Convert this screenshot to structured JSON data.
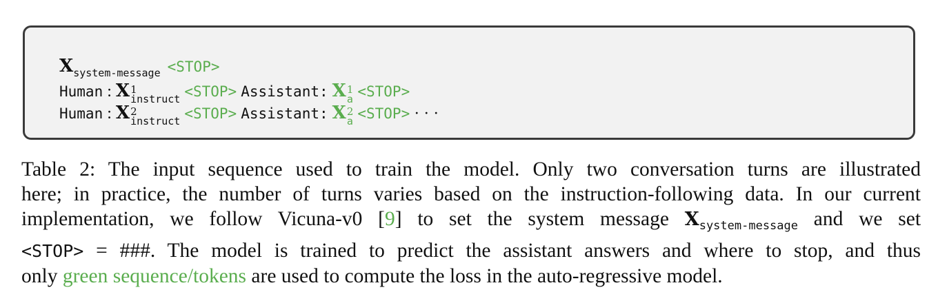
{
  "sequence_box": {
    "line1": {
      "var": "X",
      "var_sub": "system-message",
      "stop": "<STOP>"
    },
    "line2": {
      "human": "Human",
      "colon": ":",
      "var": "X",
      "var_sup": "1",
      "var_sub": "instruct",
      "stop": "<STOP>",
      "assistant": "Assistant:",
      "ans_var": "X",
      "ans_sup": "1",
      "ans_sub": "a",
      "stop2": "<STOP>"
    },
    "line3": {
      "human": "Human",
      "colon": ":",
      "var": "X",
      "var_sup": "2",
      "var_sub": "instruct",
      "stop": "<STOP>",
      "assistant": "Assistant:",
      "ans_var": "X",
      "ans_sup": "2",
      "ans_sub": "a",
      "stop2": "<STOP>",
      "ellipsis": "· · ·"
    }
  },
  "caption": {
    "line1": "Table 2: The input sequence used to train the model. Only two conversation turns are illustrated",
    "line2": "here; in practice, the number of turns varies based on the instruction-following data. In our current",
    "line3_a": "implementation, we follow Vicuna-v0 [",
    "line3_ref": "9",
    "line3_b": "] to set the system message",
    "line3_var": "X",
    "line3_sub": "system-message",
    "line3_c": "and we set",
    "line4_stop": "<STOP>",
    "line4_a": "= ###. The model is trained to predict the assistant answers and where to stop, and thus",
    "line5_a": "only",
    "line5_green": "green sequence/tokens",
    "line5_b": "are used to compute the loss in the auto-regressive model."
  },
  "colors": {
    "green": "#5aad4e",
    "box_border": "#3a3a3a",
    "box_background": "#f2f2f2"
  }
}
